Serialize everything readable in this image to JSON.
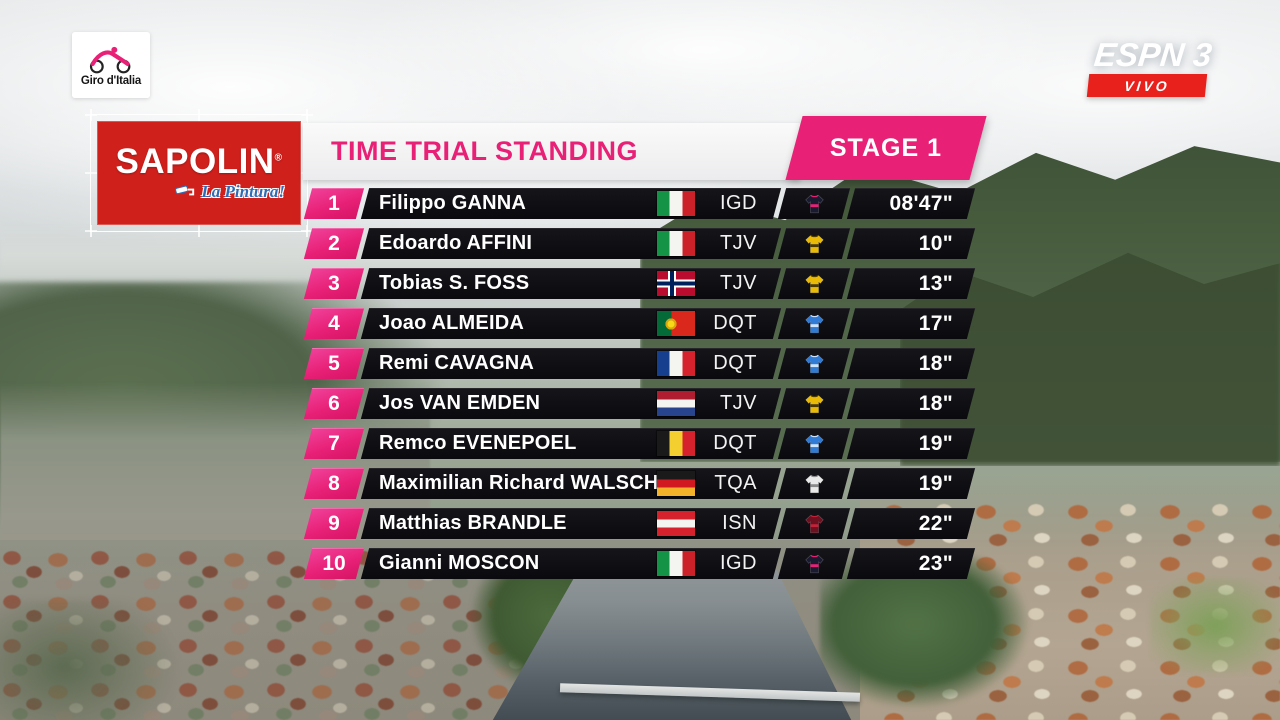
{
  "channel": {
    "name": "ESPN 3",
    "live_badge": "VIVO"
  },
  "race": {
    "logo_title": "Giro d'Italia"
  },
  "sponsor": {
    "name": "SAPOLIN",
    "reg": "®",
    "tagline": "La Pintura!"
  },
  "board": {
    "title": "TIME TRIAL STANDING",
    "stage": "STAGE 1",
    "rows": [
      {
        "rank": "1",
        "name": "Filippo GANNA",
        "country": "it",
        "team": "IGD",
        "jersey": "ineos",
        "time": "08'47\""
      },
      {
        "rank": "2",
        "name": "Edoardo AFFINI",
        "country": "it",
        "team": "TJV",
        "jersey": "yellow",
        "time": "10\""
      },
      {
        "rank": "3",
        "name": "Tobias S. FOSS",
        "country": "no",
        "team": "TJV",
        "jersey": "yellow",
        "time": "13\""
      },
      {
        "rank": "4",
        "name": "Joao ALMEIDA",
        "country": "pt",
        "team": "DQT",
        "jersey": "blue",
        "time": "17\""
      },
      {
        "rank": "5",
        "name": "Remi CAVAGNA",
        "country": "fr",
        "team": "DQT",
        "jersey": "blue",
        "time": "18\""
      },
      {
        "rank": "6",
        "name": "Jos VAN EMDEN",
        "country": "nl",
        "team": "TJV",
        "jersey": "yellow",
        "time": "18\""
      },
      {
        "rank": "7",
        "name": "Remco EVENEPOEL",
        "country": "be",
        "team": "DQT",
        "jersey": "blue",
        "time": "19\""
      },
      {
        "rank": "8",
        "name": "Maximilian Richard WALSCHEID",
        "country": "de",
        "team": "TQA",
        "jersey": "white",
        "time": "19\""
      },
      {
        "rank": "9",
        "name": "Matthias BRANDLE",
        "country": "at",
        "team": "ISN",
        "jersey": "darkred",
        "time": "22\""
      },
      {
        "rank": "10",
        "name": "Gianni MOSCON",
        "country": "it",
        "team": "IGD",
        "jersey": "ineos",
        "time": "23\""
      }
    ]
  },
  "colors": {
    "pink": "#e82177",
    "sponsor_red": "#d0201c",
    "live_red": "#e8211d",
    "bar_black": "#0e0e12"
  }
}
